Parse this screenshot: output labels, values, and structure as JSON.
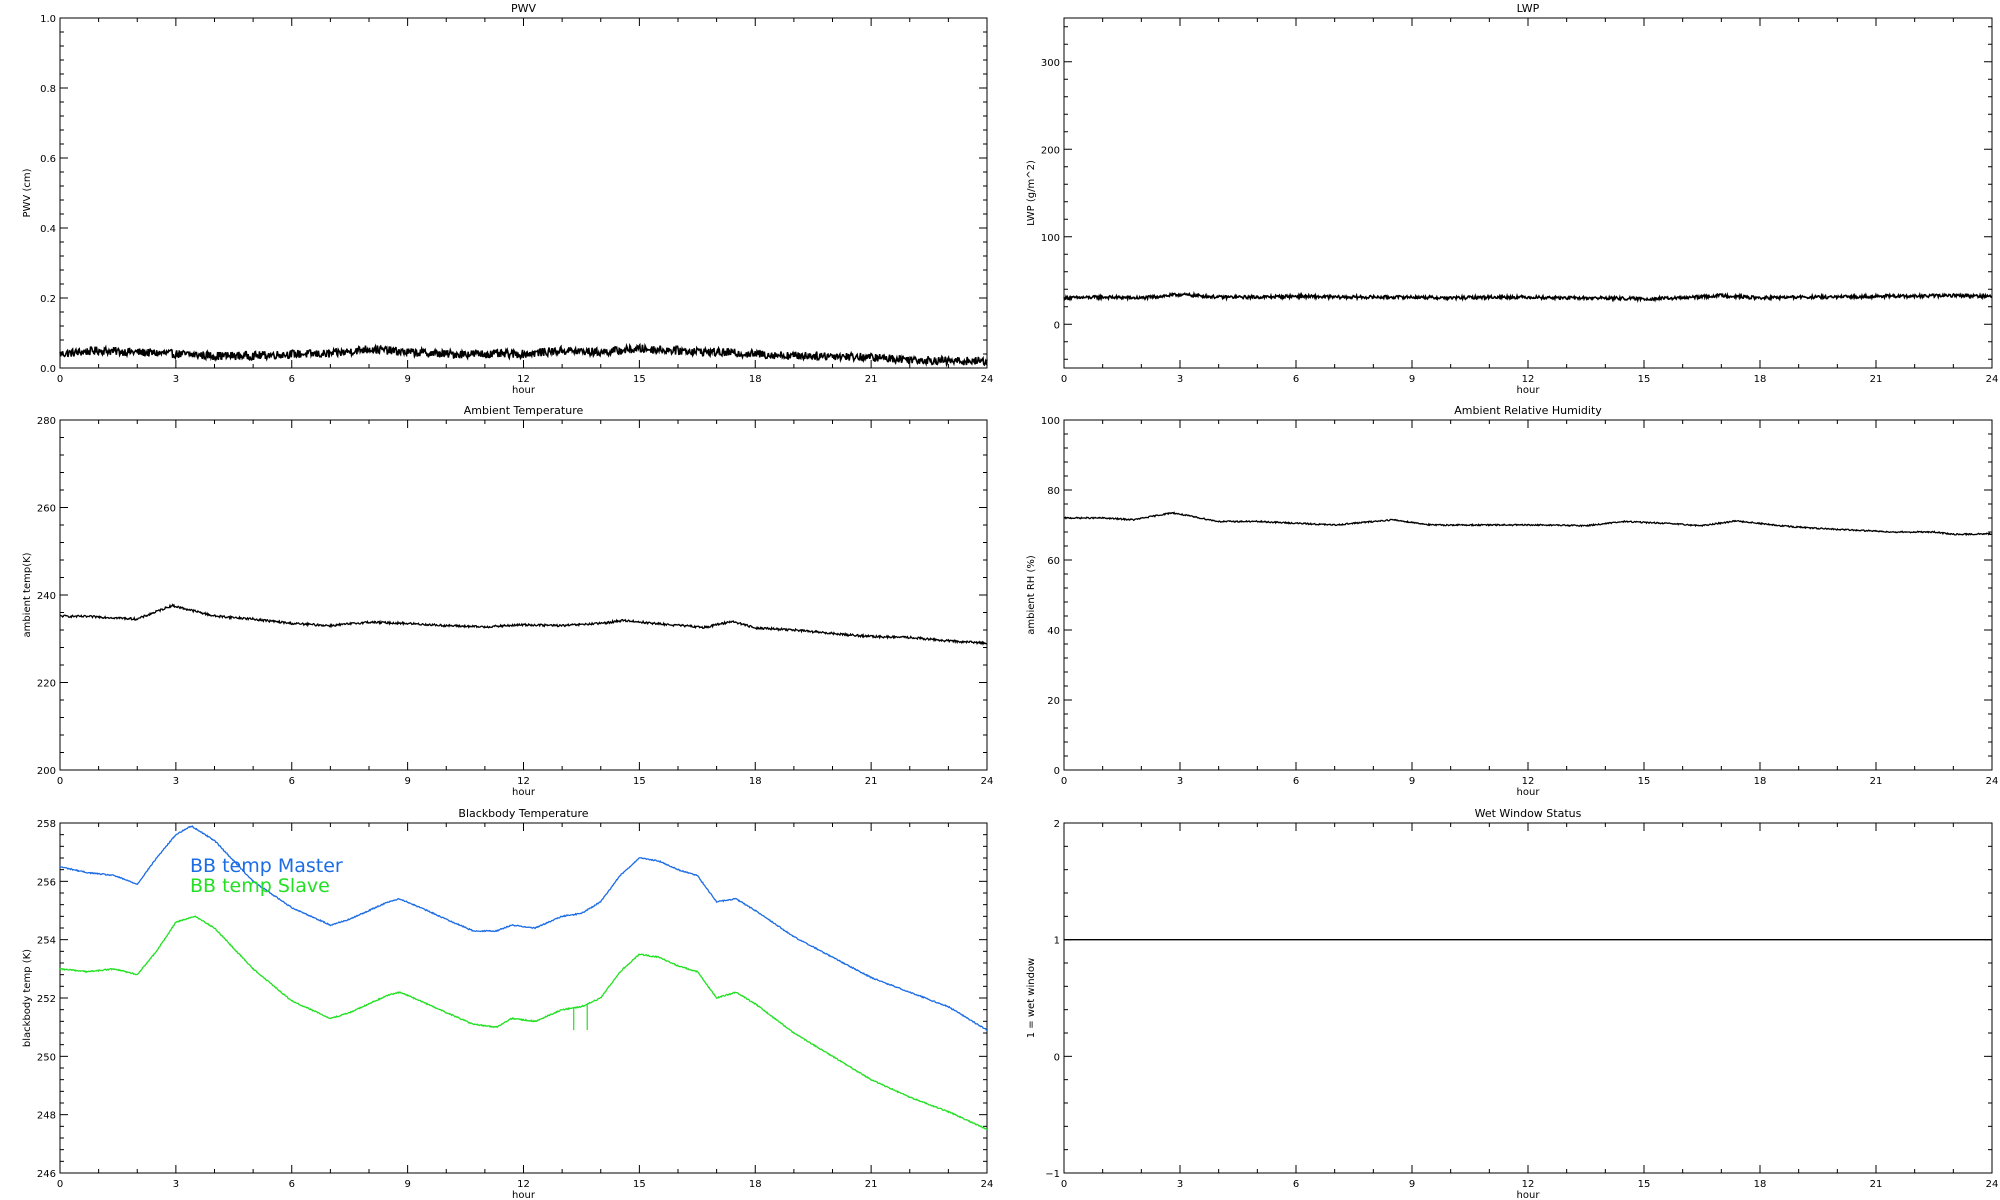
{
  "chart_data": [
    {
      "id": "pwv",
      "type": "line",
      "title": "PWV",
      "xlabel": "hour",
      "ylabel": "PWV (cm)",
      "xlim": [
        0,
        24
      ],
      "ylim": [
        0.0,
        1.0
      ],
      "xticks": [
        "0",
        "3",
        "6",
        "9",
        "12",
        "15",
        "18",
        "21",
        "24"
      ],
      "yticks": [
        "0.0",
        "0.2",
        "0.4",
        "0.6",
        "0.8",
        "1.0"
      ],
      "series": [
        {
          "color": "#000000",
          "noise": 0.012,
          "x": [
            0,
            1,
            2,
            3,
            4,
            5,
            6,
            7,
            8,
            9,
            10,
            11,
            12,
            13,
            14,
            15,
            16,
            17,
            18,
            19,
            20,
            21,
            22,
            23,
            24
          ],
          "y": [
            0.04,
            0.05,
            0.045,
            0.04,
            0.035,
            0.035,
            0.04,
            0.04,
            0.055,
            0.045,
            0.04,
            0.04,
            0.04,
            0.05,
            0.045,
            0.055,
            0.05,
            0.045,
            0.04,
            0.035,
            0.035,
            0.03,
            0.025,
            0.02,
            0.02
          ]
        }
      ]
    },
    {
      "id": "lwp",
      "type": "line",
      "title": "LWP",
      "xlabel": "hour",
      "ylabel": "LWP (g/m^2)",
      "xlim": [
        0,
        24
      ],
      "ylim": [
        -50,
        350
      ],
      "xticks": [
        "0",
        "3",
        "6",
        "9",
        "12",
        "15",
        "18",
        "21",
        "24"
      ],
      "yticks": [
        "0",
        "100",
        "200",
        "300"
      ],
      "series": [
        {
          "color": "#000000",
          "noise": 1.8,
          "x": [
            0,
            1,
            2,
            3,
            4,
            5,
            6,
            7,
            8,
            9,
            10,
            11,
            12,
            13,
            14,
            15,
            16,
            17,
            18,
            19,
            20,
            21,
            22,
            23,
            24
          ],
          "y": [
            30,
            31,
            30,
            34,
            31,
            31,
            32,
            31,
            31,
            31,
            30,
            31,
            31,
            30,
            30,
            29,
            30,
            33,
            30,
            31,
            31,
            32,
            32,
            33,
            32
          ]
        }
      ]
    },
    {
      "id": "ambient-temp",
      "type": "line",
      "title": "Ambient Temperature",
      "xlabel": "hour",
      "ylabel": "ambient temp(K)",
      "xlim": [
        0,
        24
      ],
      "ylim": [
        200,
        280
      ],
      "xticks": [
        "0",
        "3",
        "6",
        "9",
        "12",
        "15",
        "18",
        "21",
        "24"
      ],
      "yticks": [
        "200",
        "220",
        "240",
        "260",
        "280"
      ],
      "series": [
        {
          "color": "#000000",
          "noise": 0.25,
          "x": [
            0,
            1,
            2,
            2.9,
            4,
            5,
            6,
            7,
            8,
            9,
            10,
            11,
            12,
            13,
            14,
            14.6,
            15.5,
            16.7,
            17.4,
            18,
            19,
            20,
            21,
            22,
            23,
            24
          ],
          "y": [
            235.2,
            235,
            234.5,
            237.6,
            235.2,
            234.5,
            233.5,
            233,
            233.8,
            233.5,
            233,
            232.7,
            233.2,
            233,
            233.5,
            234.2,
            233.4,
            232.6,
            234,
            232.5,
            232,
            231.2,
            230.5,
            230.3,
            229.5,
            229
          ]
        }
      ]
    },
    {
      "id": "ambient-rh",
      "type": "line",
      "title": "Ambient Relative Humidity",
      "xlabel": "hour",
      "ylabel": "ambient RH (%)",
      "xlim": [
        0,
        24
      ],
      "ylim": [
        0,
        100
      ],
      "xticks": [
        "0",
        "3",
        "6",
        "9",
        "12",
        "15",
        "18",
        "21",
        "24"
      ],
      "yticks": [
        "0",
        "20",
        "40",
        "60",
        "80",
        "100"
      ],
      "series": [
        {
          "color": "#000000",
          "noise": 0.2,
          "x": [
            0,
            1,
            1.8,
            2.8,
            4,
            5,
            6,
            7,
            8.5,
            9.5,
            10.5,
            11.5,
            12.5,
            13.5,
            14.5,
            15.5,
            16.5,
            17.4,
            18.5,
            19.5,
            20.5,
            21.5,
            22.5,
            23,
            24
          ],
          "y": [
            72,
            72,
            71.5,
            73.5,
            71,
            71,
            70.5,
            70,
            71.5,
            70,
            70,
            70,
            70,
            69.8,
            71,
            70.5,
            69.8,
            71.2,
            69.8,
            69,
            68.5,
            68,
            68,
            67.3,
            67.5
          ]
        }
      ]
    },
    {
      "id": "blackbody-temp",
      "type": "line",
      "title": "Blackbody Temperature",
      "xlabel": "hour",
      "ylabel": "blackbody temp (K)",
      "xlim": [
        0,
        24
      ],
      "ylim": [
        246,
        258
      ],
      "xticks": [
        "0",
        "3",
        "6",
        "9",
        "12",
        "15",
        "18",
        "21",
        "24"
      ],
      "yticks": [
        "246",
        "248",
        "250",
        "252",
        "254",
        "256",
        "258"
      ],
      "legend_position": "top-left",
      "series": [
        {
          "name": "BB temp Master",
          "color": "#1c6ce4",
          "noise": 0.02,
          "x": [
            0,
            0.7,
            1.4,
            2,
            2.5,
            3,
            3.4,
            4,
            5,
            6,
            7,
            7.5,
            8,
            8.5,
            8.8,
            9.5,
            10,
            10.7,
            11.3,
            11.7,
            12.3,
            13,
            13.5,
            14,
            14.5,
            15,
            15.5,
            16,
            16.5,
            17,
            17.5,
            18,
            19,
            20,
            21,
            22,
            23,
            24
          ],
          "y": [
            256.5,
            256.3,
            256.2,
            255.9,
            256.8,
            257.6,
            257.9,
            257.4,
            256,
            255.1,
            254.5,
            254.7,
            255.0,
            255.3,
            255.4,
            255.0,
            254.7,
            254.3,
            254.3,
            254.5,
            254.4,
            254.8,
            254.9,
            255.3,
            256.2,
            256.8,
            256.7,
            256.4,
            256.2,
            255.3,
            255.4,
            255,
            254.1,
            253.4,
            252.7,
            252.2,
            251.7,
            250.9
          ]
        },
        {
          "name": "BB temp Slave",
          "color": "#22e022",
          "noise": 0.02,
          "x": [
            0,
            0.7,
            1.4,
            2,
            2.5,
            3,
            3.5,
            4,
            5,
            6,
            7,
            7.5,
            8,
            8.5,
            8.8,
            9.5,
            10,
            10.7,
            11.3,
            11.7,
            12.3,
            13,
            13.5,
            14,
            14.5,
            15,
            15.5,
            16,
            16.5,
            17,
            17.5,
            18,
            19,
            20,
            21,
            22,
            23,
            24
          ],
          "y": [
            253,
            252.9,
            253.0,
            252.8,
            253.6,
            254.6,
            254.8,
            254.4,
            253,
            251.9,
            251.3,
            251.5,
            251.8,
            252.1,
            252.2,
            251.8,
            251.5,
            251.1,
            251.0,
            251.3,
            251.2,
            251.6,
            251.7,
            252.0,
            252.9,
            253.5,
            253.4,
            253.1,
            252.9,
            252.0,
            252.2,
            251.8,
            250.8,
            250,
            249.2,
            248.6,
            248.1,
            247.5
          ]
        }
      ]
    },
    {
      "id": "wet-window",
      "type": "line",
      "title": "Wet Window Status",
      "xlabel": "hour",
      "ylabel": "1 = wet window",
      "xlim": [
        0,
        24
      ],
      "ylim": [
        -1,
        2
      ],
      "xticks": [
        "0",
        "3",
        "6",
        "9",
        "12",
        "15",
        "18",
        "21",
        "24"
      ],
      "yticks": [
        "−1",
        "0",
        "1",
        "2"
      ],
      "series": [
        {
          "color": "#000000",
          "noise": 0,
          "x": [
            0,
            24
          ],
          "y": [
            1,
            1
          ]
        }
      ]
    }
  ]
}
